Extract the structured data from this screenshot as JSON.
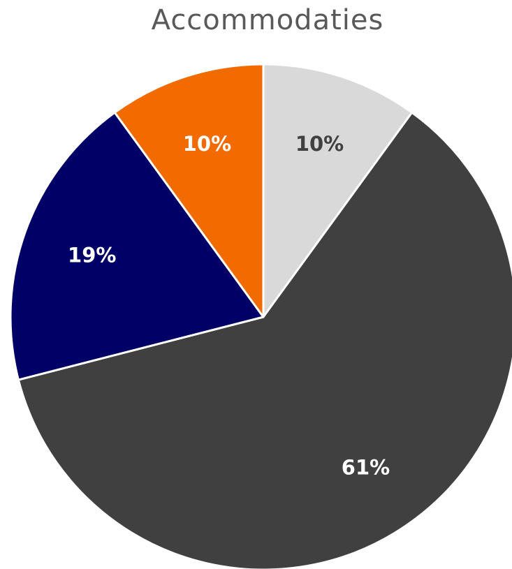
{
  "chart_data": {
    "type": "pie",
    "title": "Accommodaties",
    "values": [
      10,
      61,
      19,
      10
    ],
    "data_labels": [
      "10%",
      "61%",
      "19%",
      "10%"
    ],
    "colors": [
      "#d9d9d9",
      "#404040",
      "#000066",
      "#f26b00"
    ],
    "label_colors": [
      "#404040",
      "#ffffff",
      "#ffffff",
      "#ffffff"
    ],
    "start_angle_deg": 0,
    "direction": "clockwise"
  }
}
